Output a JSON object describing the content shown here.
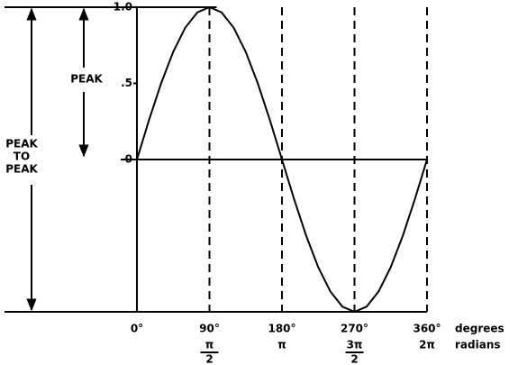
{
  "chart_data": {
    "type": "line",
    "x": [
      0,
      15,
      30,
      45,
      60,
      75,
      90,
      105,
      120,
      135,
      150,
      165,
      180,
      195,
      210,
      225,
      240,
      255,
      270,
      285,
      300,
      315,
      330,
      345,
      360
    ],
    "values": [
      0,
      0.259,
      0.5,
      0.707,
      0.866,
      0.966,
      1,
      0.966,
      0.866,
      0.707,
      0.5,
      0.259,
      0,
      -0.259,
      -0.5,
      -0.707,
      -0.866,
      -0.966,
      -1,
      -0.966,
      -0.866,
      -0.707,
      -0.5,
      -0.259,
      0
    ],
    "color": "#000000",
    "xlim": [
      0,
      360
    ],
    "ylim": [
      -1,
      1
    ],
    "xticks": [
      {
        "value": 0,
        "label": "0°"
      },
      {
        "value": 90,
        "label": "90°"
      },
      {
        "value": 180,
        "label": "180°"
      },
      {
        "value": 270,
        "label": "270°"
      },
      {
        "value": 360,
        "label": "360°"
      }
    ],
    "x_radian_labels": [
      null,
      {
        "num": "π",
        "den": "2"
      },
      {
        "num": "π",
        "den": null
      },
      {
        "num": "3π",
        "den": "2"
      },
      {
        "num": "2π",
        "den": null
      }
    ],
    "x_unit_labels": [
      "degrees",
      "radians"
    ],
    "yticks": [
      {
        "value": 1,
        "label": "1.0"
      },
      {
        "value": 0.5,
        "label": ".5"
      },
      0
    ],
    "peak_label": "PEAK",
    "peak_to_peak_label": [
      "PEAK",
      "TO",
      "PEAK"
    ]
  }
}
